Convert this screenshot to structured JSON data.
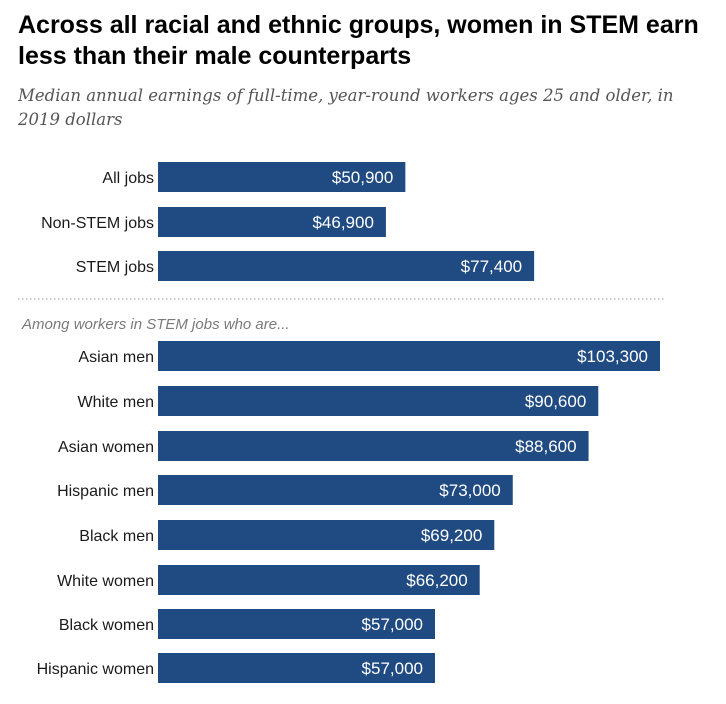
{
  "chart_data": {
    "type": "bar",
    "orientation": "horizontal",
    "title": "Across all racial and ethnic groups, women in STEM earn less than their male counterparts",
    "subtitle": "Median annual earnings of full-time, year-round workers ages 25 and older, in 2019 dollars",
    "bar_color": "#1f4a82",
    "groups": [
      {
        "label": "",
        "categories": [
          "All jobs",
          "Non-STEM jobs",
          "STEM jobs"
        ],
        "values": [
          50900,
          46900,
          77400
        ],
        "value_labels": [
          "$50,900",
          "$46,900",
          "$77,400"
        ]
      },
      {
        "label": "Among workers in STEM jobs who are...",
        "categories": [
          "Asian men",
          "White men",
          "Asian women",
          "Hispanic men",
          "Black men",
          "White women",
          "Black women",
          "Hispanic women"
        ],
        "values": [
          103300,
          90600,
          88600,
          73000,
          69200,
          66200,
          57000,
          57000
        ],
        "value_labels": [
          "$103,300",
          "$90,600",
          "$88,600",
          "$73,000",
          "$69,200",
          "$66,200",
          "$57,000",
          "$57,000"
        ]
      }
    ],
    "xlim": [
      0,
      103300
    ],
    "grid": false,
    "legend": "none"
  }
}
